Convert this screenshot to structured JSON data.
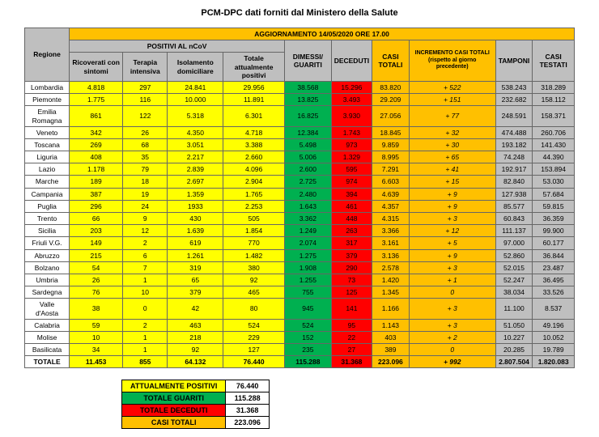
{
  "title": "PCM-DPC dati forniti dal Ministero della Salute",
  "update_header": "AGGIORNAMENTO 14/05/2020 ORE 17.00",
  "col_region": "Regione",
  "col_group_positivi": "POSITIVI AL nCoV",
  "cols": {
    "ricoverati": "Ricoverati con sintomi",
    "terapia": "Terapia intensiva",
    "isolamento": "Isolamento domiciliare",
    "tot_pos": "Totale attualmente positivi",
    "dimessi": "DIMESSI/ GUARITI",
    "deceduti": "DECEDUTI",
    "casi_totali": "CASI TOTALI",
    "incremento": "INCREMENTO CASI  TOTALI (rispetto al giorno precedente)",
    "tamponi": "TAMPONI",
    "testati": "CASI TESTATI"
  },
  "rows": [
    {
      "reg": "Lombardia",
      "ric": "4.818",
      "ter": "297",
      "iso": "24.841",
      "tot": "29.956",
      "dim": "38.568",
      "dec": "15.296",
      "casi": "83.820",
      "inc": "+ 522",
      "tam": "538.243",
      "tes": "318.289"
    },
    {
      "reg": "Piemonte",
      "ric": "1.775",
      "ter": "116",
      "iso": "10.000",
      "tot": "11.891",
      "dim": "13.825",
      "dec": "3.493",
      "casi": "29.209",
      "inc": "+ 151",
      "tam": "232.682",
      "tes": "158.112"
    },
    {
      "reg": "Emilia Romagna",
      "ric": "861",
      "ter": "122",
      "iso": "5.318",
      "tot": "6.301",
      "dim": "16.825",
      "dec": "3.930",
      "casi": "27.056",
      "inc": "+ 77",
      "tam": "248.591",
      "tes": "158.371"
    },
    {
      "reg": "Veneto",
      "ric": "342",
      "ter": "26",
      "iso": "4.350",
      "tot": "4.718",
      "dim": "12.384",
      "dec": "1.743",
      "casi": "18.845",
      "inc": "+ 32",
      "tam": "474.488",
      "tes": "260.706"
    },
    {
      "reg": "Toscana",
      "ric": "269",
      "ter": "68",
      "iso": "3.051",
      "tot": "3.388",
      "dim": "5.498",
      "dec": "973",
      "casi": "9.859",
      "inc": "+ 30",
      "tam": "193.182",
      "tes": "141.430"
    },
    {
      "reg": "Liguria",
      "ric": "408",
      "ter": "35",
      "iso": "2.217",
      "tot": "2.660",
      "dim": "5.006",
      "dec": "1.329",
      "casi": "8.995",
      "inc": "+ 65",
      "tam": "74.248",
      "tes": "44.390"
    },
    {
      "reg": "Lazio",
      "ric": "1.178",
      "ter": "79",
      "iso": "2.839",
      "tot": "4.096",
      "dim": "2.600",
      "dec": "595",
      "casi": "7.291",
      "inc": "+ 41",
      "tam": "192.917",
      "tes": "153.894"
    },
    {
      "reg": "Marche",
      "ric": "189",
      "ter": "18",
      "iso": "2.697",
      "tot": "2.904",
      "dim": "2.725",
      "dec": "974",
      "casi": "6.603",
      "inc": "+ 15",
      "tam": "82.840",
      "tes": "53.030"
    },
    {
      "reg": "Campania",
      "ric": "387",
      "ter": "19",
      "iso": "1.359",
      "tot": "1.765",
      "dim": "2.480",
      "dec": "394",
      "casi": "4.639",
      "inc": "+ 9",
      "tam": "127.938",
      "tes": "57.684"
    },
    {
      "reg": "Puglia",
      "ric": "296",
      "ter": "24",
      "iso": "1933",
      "tot": "2.253",
      "dim": "1.643",
      "dec": "461",
      "casi": "4.357",
      "inc": "+ 9",
      "tam": "85.577",
      "tes": "59.815"
    },
    {
      "reg": "Trento",
      "ric": "66",
      "ter": "9",
      "iso": "430",
      "tot": "505",
      "dim": "3.362",
      "dec": "448",
      "casi": "4.315",
      "inc": "+ 3",
      "tam": "60.843",
      "tes": "36.359"
    },
    {
      "reg": "Sicilia",
      "ric": "203",
      "ter": "12",
      "iso": "1.639",
      "tot": "1.854",
      "dim": "1.249",
      "dec": "263",
      "casi": "3.366",
      "inc": "+ 12",
      "tam": "111.137",
      "tes": "99.900"
    },
    {
      "reg": "Friuli V.G.",
      "ric": "149",
      "ter": "2",
      "iso": "619",
      "tot": "770",
      "dim": "2.074",
      "dec": "317",
      "casi": "3.161",
      "inc": "+ 5",
      "tam": "97.000",
      "tes": "60.177"
    },
    {
      "reg": "Abruzzo",
      "ric": "215",
      "ter": "6",
      "iso": "1.261",
      "tot": "1.482",
      "dim": "1.275",
      "dec": "379",
      "casi": "3.136",
      "inc": "+ 9",
      "tam": "52.860",
      "tes": "36.844"
    },
    {
      "reg": "Bolzano",
      "ric": "54",
      "ter": "7",
      "iso": "319",
      "tot": "380",
      "dim": "1.908",
      "dec": "290",
      "casi": "2.578",
      "inc": "+ 3",
      "tam": "52.015",
      "tes": "23.487"
    },
    {
      "reg": "Umbria",
      "ric": "26",
      "ter": "1",
      "iso": "65",
      "tot": "92",
      "dim": "1.255",
      "dec": "73",
      "casi": "1.420",
      "inc": "+ 1",
      "tam": "52.247",
      "tes": "36.495"
    },
    {
      "reg": "Sardegna",
      "ric": "76",
      "ter": "10",
      "iso": "379",
      "tot": "465",
      "dim": "755",
      "dec": "125",
      "casi": "1.345",
      "inc": "0",
      "tam": "38.034",
      "tes": "33.526"
    },
    {
      "reg": "Valle d'Aosta",
      "ric": "38",
      "ter": "0",
      "iso": "42",
      "tot": "80",
      "dim": "945",
      "dec": "141",
      "casi": "1.166",
      "inc": "+ 3",
      "tam": "11.100",
      "tes": "8.537"
    },
    {
      "reg": "Calabria",
      "ric": "59",
      "ter": "2",
      "iso": "463",
      "tot": "524",
      "dim": "524",
      "dec": "95",
      "casi": "1.143",
      "inc": "+ 3",
      "tam": "51.050",
      "tes": "49.196"
    },
    {
      "reg": "Molise",
      "ric": "10",
      "ter": "1",
      "iso": "218",
      "tot": "229",
      "dim": "152",
      "dec": "22",
      "casi": "403",
      "inc": "+ 2",
      "tam": "10.227",
      "tes": "10.052"
    },
    {
      "reg": "Basilicata",
      "ric": "34",
      "ter": "1",
      "iso": "92",
      "tot": "127",
      "dim": "235",
      "dec": "27",
      "casi": "389",
      "inc": "0",
      "tam": "20.285",
      "tes": "19.789"
    }
  ],
  "total": {
    "reg": "TOTALE",
    "ric": "11.453",
    "ter": "855",
    "iso": "64.132",
    "tot": "76.440",
    "dim": "115.288",
    "dec": "31.368",
    "casi": "223.096",
    "inc": "+ 992",
    "tam": "2.807.504",
    "tes": "1.820.083"
  },
  "legend": {
    "r1": {
      "label": "ATTUALMENTE POSITIVI",
      "val": "76.440"
    },
    "r2": {
      "label": "TOTALE GUARITI",
      "val": "115.288"
    },
    "r3": {
      "label": "TOTALE DECEDUTI",
      "val": "31.368"
    },
    "r4": {
      "label": "CASI TOTALI",
      "val": "223.096"
    }
  }
}
